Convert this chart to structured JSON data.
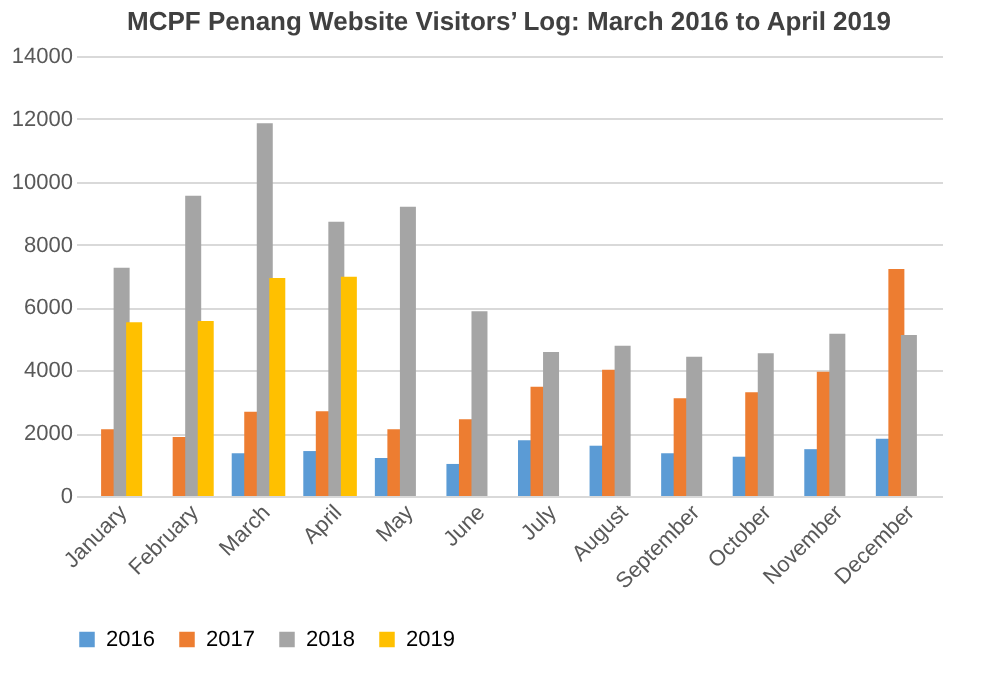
{
  "chart_data": {
    "type": "bar",
    "title": "MCPF Penang Website Visitors’ Log: March 2016 to April 2019",
    "categories": [
      "January",
      "February",
      "March",
      "April",
      "May",
      "June",
      "July",
      "August",
      "September",
      "October",
      "November",
      "December"
    ],
    "series": [
      {
        "name": "2016",
        "color": "#5b9bd5",
        "values": [
          null,
          null,
          1360,
          1430,
          1210,
          1020,
          1770,
          1600,
          1360,
          1250,
          1490,
          1820
        ]
      },
      {
        "name": "2017",
        "color": "#ed7d31",
        "values": [
          2120,
          1880,
          2680,
          2700,
          2120,
          2440,
          3480,
          4020,
          3110,
          3300,
          3950,
          7220
        ]
      },
      {
        "name": "2018",
        "color": "#a5a5a5",
        "values": [
          7260,
          9550,
          11860,
          8730,
          9200,
          5880,
          4580,
          4780,
          4430,
          4540,
          5160,
          5120
        ]
      },
      {
        "name": "2019",
        "color": "#ffc000",
        "values": [
          5530,
          5570,
          6940,
          6980,
          null,
          null,
          null,
          null,
          null,
          null,
          null,
          null
        ]
      }
    ],
    "ylim": [
      0,
      14000
    ],
    "yticks": [
      0,
      2000,
      4000,
      6000,
      8000,
      10000,
      12000,
      14000
    ],
    "grid": "y",
    "legend": "bottom"
  }
}
